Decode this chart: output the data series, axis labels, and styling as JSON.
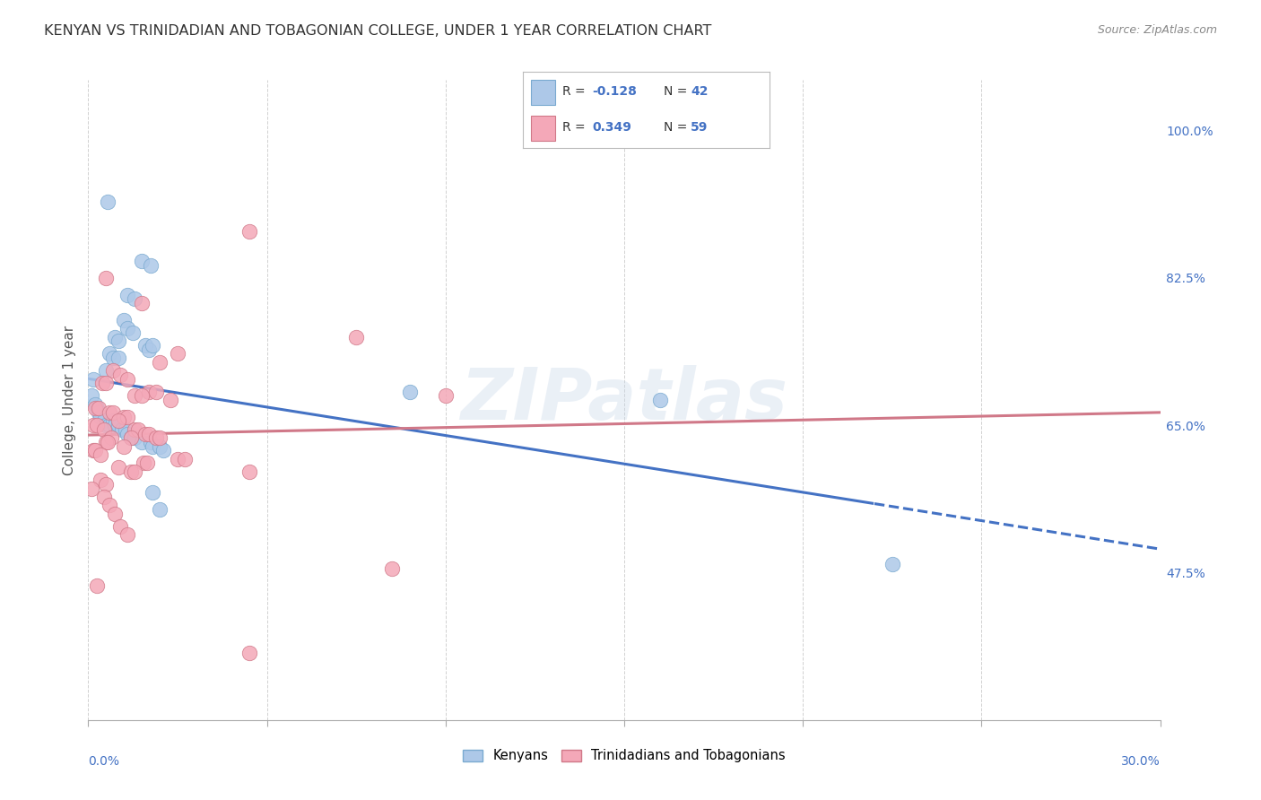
{
  "title": "KENYAN VS TRINIDADIAN AND TOBAGONIAN COLLEGE, UNDER 1 YEAR CORRELATION CHART",
  "source": "Source: ZipAtlas.com",
  "ylabel": "College, Under 1 year",
  "yticks": [
    30.0,
    47.5,
    65.0,
    82.5,
    100.0
  ],
  "ytick_labels": [
    "",
    "47.5%",
    "65.0%",
    "82.5%",
    "100.0%"
  ],
  "xtick_positions": [
    0.0,
    5.0,
    10.0,
    15.0,
    20.0,
    25.0,
    30.0
  ],
  "xlim": [
    0.0,
    30.0
  ],
  "ylim": [
    30.0,
    106.0
  ],
  "watermark": "ZIPatlas",
  "kenyan_R": -0.128,
  "kenyan_N": 42,
  "trinidadian_R": 0.349,
  "trinidadian_N": 59,
  "kenyan_face_color": "#adc8e8",
  "kenyan_edge_color": "#7aaad0",
  "kenyan_line_color": "#4472c4",
  "trini_face_color": "#f4a8b8",
  "trini_edge_color": "#d07888",
  "trini_line_color": "#d07888",
  "bg_color": "#ffffff",
  "grid_color": "#cccccc",
  "kenyan_pts": [
    [
      0.55,
      91.5
    ],
    [
      1.5,
      84.5
    ],
    [
      1.75,
      84.0
    ],
    [
      1.1,
      80.5
    ],
    [
      1.3,
      80.0
    ],
    [
      1.0,
      77.5
    ],
    [
      1.1,
      76.5
    ],
    [
      1.25,
      76.0
    ],
    [
      0.75,
      75.5
    ],
    [
      0.85,
      75.0
    ],
    [
      1.6,
      74.5
    ],
    [
      1.7,
      74.0
    ],
    [
      1.8,
      74.5
    ],
    [
      0.6,
      73.5
    ],
    [
      0.7,
      73.0
    ],
    [
      0.85,
      73.0
    ],
    [
      0.5,
      71.5
    ],
    [
      0.15,
      70.5
    ],
    [
      0.1,
      68.5
    ],
    [
      0.2,
      67.5
    ],
    [
      0.25,
      67.0
    ],
    [
      0.3,
      66.5
    ],
    [
      0.35,
      66.0
    ],
    [
      0.45,
      65.5
    ],
    [
      0.5,
      65.0
    ],
    [
      0.6,
      65.0
    ],
    [
      0.7,
      65.5
    ],
    [
      0.75,
      65.0
    ],
    [
      0.85,
      65.0
    ],
    [
      0.95,
      64.5
    ],
    [
      1.05,
      64.5
    ],
    [
      1.1,
      64.0
    ],
    [
      1.2,
      63.5
    ],
    [
      1.3,
      63.5
    ],
    [
      1.5,
      63.0
    ],
    [
      1.75,
      63.0
    ],
    [
      1.8,
      62.5
    ],
    [
      2.0,
      62.5
    ],
    [
      2.1,
      62.0
    ],
    [
      1.8,
      57.0
    ],
    [
      2.0,
      55.0
    ],
    [
      9.0,
      69.0
    ],
    [
      16.0,
      68.0
    ],
    [
      22.5,
      48.5
    ]
  ],
  "trini_pts": [
    [
      4.5,
      88.0
    ],
    [
      0.5,
      82.5
    ],
    [
      1.5,
      79.5
    ],
    [
      7.5,
      75.5
    ],
    [
      2.5,
      73.5
    ],
    [
      2.0,
      72.5
    ],
    [
      0.7,
      71.5
    ],
    [
      0.9,
      71.0
    ],
    [
      1.1,
      70.5
    ],
    [
      0.4,
      70.0
    ],
    [
      0.5,
      70.0
    ],
    [
      1.7,
      69.0
    ],
    [
      1.9,
      69.0
    ],
    [
      1.3,
      68.5
    ],
    [
      1.5,
      68.5
    ],
    [
      10.0,
      68.5
    ],
    [
      2.3,
      68.0
    ],
    [
      0.2,
      67.0
    ],
    [
      0.3,
      67.0
    ],
    [
      0.6,
      66.5
    ],
    [
      0.7,
      66.5
    ],
    [
      1.0,
      66.0
    ],
    [
      1.1,
      66.0
    ],
    [
      0.85,
      65.5
    ],
    [
      0.15,
      65.0
    ],
    [
      0.25,
      65.0
    ],
    [
      0.45,
      64.5
    ],
    [
      1.3,
      64.5
    ],
    [
      1.4,
      64.5
    ],
    [
      1.6,
      64.0
    ],
    [
      1.7,
      64.0
    ],
    [
      0.65,
      63.5
    ],
    [
      1.2,
      63.5
    ],
    [
      1.9,
      63.5
    ],
    [
      2.0,
      63.5
    ],
    [
      0.5,
      63.0
    ],
    [
      0.55,
      63.0
    ],
    [
      1.0,
      62.5
    ],
    [
      0.15,
      62.0
    ],
    [
      0.2,
      62.0
    ],
    [
      0.35,
      61.5
    ],
    [
      2.5,
      61.0
    ],
    [
      2.7,
      61.0
    ],
    [
      1.55,
      60.5
    ],
    [
      1.65,
      60.5
    ],
    [
      0.85,
      60.0
    ],
    [
      1.2,
      59.5
    ],
    [
      1.3,
      59.5
    ],
    [
      4.5,
      59.5
    ],
    [
      0.35,
      58.5
    ],
    [
      0.5,
      58.0
    ],
    [
      0.1,
      57.5
    ],
    [
      0.45,
      56.5
    ],
    [
      0.6,
      55.5
    ],
    [
      0.75,
      54.5
    ],
    [
      0.9,
      53.0
    ],
    [
      1.1,
      52.0
    ],
    [
      8.5,
      48.0
    ],
    [
      0.25,
      46.0
    ],
    [
      4.5,
      38.0
    ]
  ]
}
